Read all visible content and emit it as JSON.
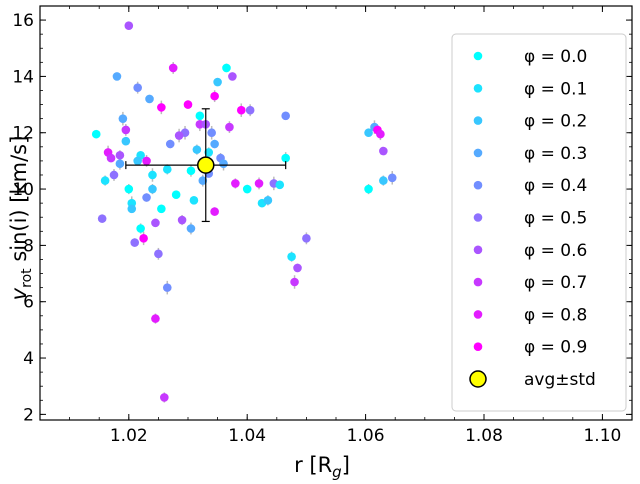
{
  "chart_data": {
    "type": "scatter",
    "xlabel_main": "r [R",
    "xlabel_sub": "g",
    "xlabel_end": "]",
    "ylabel_v": "v",
    "ylabel_sub": "rot",
    "ylabel_rest": " sin(i) [km/s]",
    "xlim": [
      1.005,
      1.105
    ],
    "ylim": [
      1.8,
      16.5
    ],
    "xticks": [
      1.02,
      1.04,
      1.06,
      1.08,
      1.1
    ],
    "xtick_labels": [
      "1.02",
      "1.04",
      "1.06",
      "1.08",
      "1.10"
    ],
    "yticks": [
      2,
      4,
      6,
      8,
      10,
      12,
      14,
      16
    ],
    "ytick_labels": [
      "2",
      "4",
      "6",
      "8",
      "10",
      "12",
      "14",
      "16"
    ],
    "legend_position": "right",
    "phases": [
      {
        "label": "φ = 0.0",
        "color": "#00ffff"
      },
      {
        "label": "φ = 0.1",
        "color": "#1ce3ff"
      },
      {
        "label": "φ = 0.2",
        "color": "#38c7ff"
      },
      {
        "label": "φ = 0.3",
        "color": "#55aaff"
      },
      {
        "label": "φ = 0.4",
        "color": "#718eff"
      },
      {
        "label": "φ = 0.5",
        "color": "#8e71ff"
      },
      {
        "label": "φ = 0.6",
        "color": "#aa55ff"
      },
      {
        "label": "φ = 0.7",
        "color": "#c738ff"
      },
      {
        "label": "φ = 0.8",
        "color": "#e31cff"
      },
      {
        "label": "φ = 0.9",
        "color": "#ff00ff"
      }
    ],
    "avg_label": "avg±std",
    "avg": {
      "x": 1.033,
      "y": 10.85,
      "xerr": 0.0135,
      "yerr": 2.0,
      "color": "#ffff00"
    },
    "points": [
      [
        1.0145,
        11.95,
        0
      ],
      [
        1.016,
        10.3,
        1
      ],
      [
        1.0165,
        11.3,
        8
      ],
      [
        1.017,
        11.1,
        7
      ],
      [
        1.0175,
        10.5,
        5
      ],
      [
        1.018,
        14.0,
        3
      ],
      [
        1.0185,
        11.2,
        6
      ],
      [
        1.019,
        12.5,
        3
      ],
      [
        1.0195,
        11.7,
        2
      ],
      [
        1.0195,
        12.1,
        7
      ],
      [
        1.02,
        15.8,
        6
      ],
      [
        1.02,
        10.0,
        0
      ],
      [
        1.0205,
        9.5,
        1
      ],
      [
        1.021,
        8.1,
        5
      ],
      [
        1.0215,
        13.6,
        4
      ],
      [
        1.022,
        11.2,
        1
      ],
      [
        1.022,
        8.6,
        0
      ],
      [
        1.0225,
        8.25,
        9
      ],
      [
        1.023,
        9.7,
        4
      ],
      [
        1.023,
        11.0,
        8
      ],
      [
        1.0235,
        13.2,
        3
      ],
      [
        1.024,
        10.0,
        2
      ],
      [
        1.024,
        10.5,
        1
      ],
      [
        1.0245,
        8.8,
        6
      ],
      [
        1.025,
        7.7,
        5
      ],
      [
        1.0255,
        9.3,
        0
      ],
      [
        1.026,
        2.6,
        7
      ],
      [
        1.0265,
        6.5,
        4
      ],
      [
        1.027,
        11.6,
        4
      ],
      [
        1.0275,
        14.3,
        8
      ],
      [
        1.028,
        9.8,
        0
      ],
      [
        1.029,
        8.9,
        6
      ],
      [
        1.0295,
        12.0,
        5
      ],
      [
        1.03,
        13.0,
        9
      ],
      [
        1.0305,
        8.6,
        3
      ],
      [
        1.031,
        9.6,
        1
      ],
      [
        1.0315,
        11.4,
        2
      ],
      [
        1.032,
        12.3,
        7
      ],
      [
        1.032,
        12.6,
        0
      ],
      [
        1.0325,
        10.3,
        3
      ],
      [
        1.033,
        12.3,
        6
      ],
      [
        1.0335,
        11.3,
        1
      ],
      [
        1.034,
        12.0,
        4
      ],
      [
        1.0345,
        9.2,
        8
      ],
      [
        1.0345,
        13.3,
        9
      ],
      [
        1.035,
        13.8,
        2
      ],
      [
        1.0355,
        11.1,
        4
      ],
      [
        1.036,
        10.9,
        3
      ],
      [
        1.0365,
        14.3,
        0
      ],
      [
        1.037,
        12.2,
        7
      ],
      [
        1.0375,
        14.0,
        6
      ],
      [
        1.038,
        10.2,
        8
      ],
      [
        1.039,
        12.8,
        9
      ],
      [
        1.04,
        10.0,
        0
      ],
      [
        1.042,
        10.2,
        8
      ],
      [
        1.0425,
        9.5,
        1
      ],
      [
        1.0435,
        9.6,
        2
      ],
      [
        1.0445,
        10.2,
        5
      ],
      [
        1.0455,
        10.15,
        1
      ],
      [
        1.0465,
        11.1,
        0
      ],
      [
        1.0465,
        12.6,
        4
      ],
      [
        1.0475,
        7.6,
        1
      ],
      [
        1.048,
        6.7,
        7
      ],
      [
        1.0485,
        7.2,
        6
      ],
      [
        1.05,
        8.25,
        5
      ],
      [
        1.0605,
        12.0,
        2
      ],
      [
        1.0605,
        10.0,
        0
      ],
      [
        1.0615,
        12.2,
        3
      ],
      [
        1.062,
        12.1,
        9
      ],
      [
        1.0625,
        11.95,
        8
      ],
      [
        1.063,
        11.35,
        6
      ],
      [
        1.063,
        10.3,
        2
      ],
      [
        1.0645,
        10.4,
        4
      ],
      [
        1.0155,
        8.95,
        5
      ],
      [
        1.0185,
        10.9,
        3
      ],
      [
        1.0215,
        11.0,
        2
      ],
      [
        1.0265,
        10.7,
        1
      ],
      [
        1.0285,
        11.9,
        6
      ],
      [
        1.0345,
        11.6,
        3
      ],
      [
        1.0405,
        12.8,
        5
      ],
      [
        1.0335,
        10.55,
        4
      ],
      [
        1.0245,
        5.4,
        8
      ],
      [
        1.0255,
        12.9,
        9
      ],
      [
        1.0205,
        9.3,
        2
      ],
      [
        1.0305,
        10.65,
        0
      ]
    ]
  }
}
